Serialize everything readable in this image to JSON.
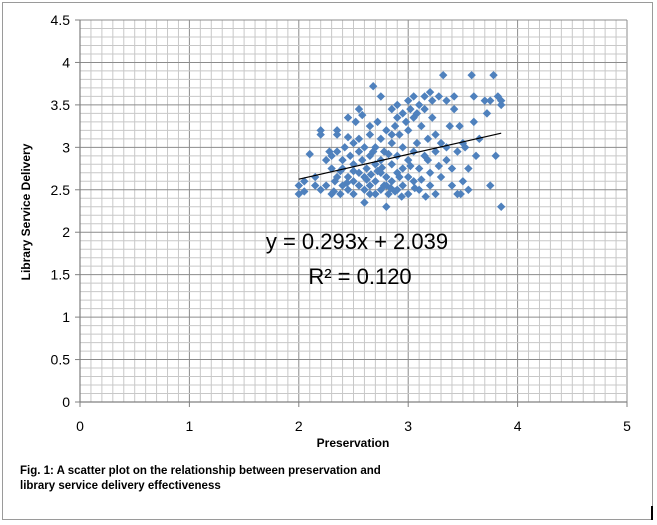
{
  "chart_data": {
    "type": "scatter",
    "xlabel": "Preservation",
    "ylabel": "Library Service Delivery",
    "xlim": [
      0,
      5
    ],
    "ylim": [
      0,
      4.5
    ],
    "x_ticks": [
      "0",
      "1",
      "2",
      "3",
      "4",
      "5"
    ],
    "y_ticks": [
      "0",
      "0.5",
      "1",
      "1.5",
      "2",
      "2.5",
      "3",
      "3.5",
      "4",
      "4.5"
    ],
    "grid": true,
    "marker_color": "#4f81bd",
    "trendline": {
      "equation": "y = 0.293x + 2.039",
      "r_squared": "R² = 0.120",
      "slope": 0.293,
      "intercept": 2.039,
      "x_range": [
        2.0,
        3.85
      ],
      "color": "#000000"
    },
    "points": [
      [
        2.0,
        2.45
      ],
      [
        2.0,
        2.55
      ],
      [
        2.05,
        2.6
      ],
      [
        2.1,
        2.92
      ],
      [
        2.15,
        2.65
      ],
      [
        2.2,
        3.2
      ],
      [
        2.2,
        3.15
      ],
      [
        2.2,
        2.5
      ],
      [
        2.25,
        2.55
      ],
      [
        2.25,
        2.85
      ],
      [
        2.28,
        2.95
      ],
      [
        2.3,
        2.45
      ],
      [
        2.3,
        2.75
      ],
      [
        2.3,
        2.9
      ],
      [
        2.33,
        2.6
      ],
      [
        2.35,
        2.65
      ],
      [
        2.35,
        2.95
      ],
      [
        2.35,
        3.2
      ],
      [
        2.35,
        3.15
      ],
      [
        2.38,
        2.45
      ],
      [
        2.4,
        2.85
      ],
      [
        2.4,
        2.55
      ],
      [
        2.4,
        2.75
      ],
      [
        2.42,
        3.0
      ],
      [
        2.45,
        2.65
      ],
      [
        2.45,
        2.5
      ],
      [
        2.45,
        3.35
      ],
      [
        2.47,
        2.9
      ],
      [
        2.5,
        2.45
      ],
      [
        2.5,
        2.6
      ],
      [
        2.5,
        2.8
      ],
      [
        2.5,
        3.05
      ],
      [
        2.52,
        3.3
      ],
      [
        2.55,
        2.55
      ],
      [
        2.55,
        2.7
      ],
      [
        2.55,
        2.95
      ],
      [
        2.55,
        3.1
      ],
      [
        2.55,
        3.45
      ],
      [
        2.58,
        2.85
      ],
      [
        2.6,
        2.5
      ],
      [
        2.6,
        2.35
      ],
      [
        2.6,
        2.65
      ],
      [
        2.6,
        3.0
      ],
      [
        2.62,
        2.75
      ],
      [
        2.65,
        2.45
      ],
      [
        2.65,
        2.55
      ],
      [
        2.65,
        2.9
      ],
      [
        2.65,
        3.15
      ],
      [
        2.65,
        3.25
      ],
      [
        2.68,
        3.72
      ],
      [
        2.7,
        2.6
      ],
      [
        2.7,
        2.8
      ],
      [
        2.7,
        3.0
      ],
      [
        2.7,
        2.45
      ],
      [
        2.72,
        3.3
      ],
      [
        2.75,
        2.7
      ],
      [
        2.75,
        2.5
      ],
      [
        2.75,
        2.85
      ],
      [
        2.75,
        3.1
      ],
      [
        2.75,
        3.6
      ],
      [
        2.78,
        2.95
      ],
      [
        2.8,
        2.3
      ],
      [
        2.8,
        2.55
      ],
      [
        2.8,
        2.65
      ],
      [
        2.8,
        3.2
      ],
      [
        2.82,
        2.45
      ],
      [
        2.85,
        2.8
      ],
      [
        2.85,
        3.05
      ],
      [
        2.85,
        3.45
      ],
      [
        2.85,
        2.6
      ],
      [
        2.88,
        3.25
      ],
      [
        2.9,
        2.5
      ],
      [
        2.9,
        2.7
      ],
      [
        2.9,
        2.9
      ],
      [
        2.9,
        3.35
      ],
      [
        2.9,
        3.5
      ],
      [
        2.92,
        3.15
      ],
      [
        2.95,
        2.55
      ],
      [
        2.95,
        2.75
      ],
      [
        2.95,
        3.0
      ],
      [
        2.95,
        3.4
      ],
      [
        3.0,
        2.45
      ],
      [
        3.0,
        2.65
      ],
      [
        3.0,
        2.85
      ],
      [
        3.0,
        3.55
      ],
      [
        3.0,
        3.2
      ],
      [
        3.02,
        3.45
      ],
      [
        3.05,
        2.6
      ],
      [
        3.05,
        2.95
      ],
      [
        3.05,
        3.35
      ],
      [
        3.05,
        3.6
      ],
      [
        3.08,
        3.05
      ],
      [
        3.1,
        2.75
      ],
      [
        3.1,
        2.5
      ],
      [
        3.1,
        3.5
      ],
      [
        3.12,
        3.25
      ],
      [
        3.15,
        2.9
      ],
      [
        3.15,
        3.6
      ],
      [
        3.15,
        3.45
      ],
      [
        3.18,
        3.1
      ],
      [
        3.2,
        3.65
      ],
      [
        3.2,
        2.55
      ],
      [
        3.2,
        2.7
      ],
      [
        3.22,
        3.55
      ],
      [
        3.25,
        2.45
      ],
      [
        3.25,
        3.15
      ],
      [
        3.25,
        2.95
      ],
      [
        3.28,
        3.6
      ],
      [
        3.3,
        3.05
      ],
      [
        3.3,
        2.65
      ],
      [
        3.32,
        3.85
      ],
      [
        3.35,
        3.55
      ],
      [
        3.35,
        2.85
      ],
      [
        3.38,
        3.25
      ],
      [
        3.4,
        2.55
      ],
      [
        3.4,
        2.75
      ],
      [
        3.42,
        3.6
      ],
      [
        3.45,
        2.45
      ],
      [
        3.45,
        2.95
      ],
      [
        3.47,
        3.25
      ],
      [
        3.5,
        2.6
      ],
      [
        3.5,
        3.05
      ],
      [
        3.52,
        3.0
      ],
      [
        3.55,
        2.75
      ],
      [
        3.55,
        2.5
      ],
      [
        3.58,
        3.85
      ],
      [
        3.6,
        3.6
      ],
      [
        3.6,
        3.3
      ],
      [
        3.62,
        2.9
      ],
      [
        3.65,
        3.1
      ],
      [
        3.7,
        3.55
      ],
      [
        3.72,
        3.4
      ],
      [
        3.75,
        2.55
      ],
      [
        3.75,
        3.55
      ],
      [
        3.78,
        3.85
      ],
      [
        3.8,
        2.9
      ],
      [
        3.82,
        3.6
      ],
      [
        3.85,
        3.5
      ],
      [
        3.85,
        2.3
      ],
      [
        3.85,
        3.55
      ],
      [
        2.05,
        2.48
      ],
      [
        2.15,
        2.55
      ],
      [
        2.38,
        2.72
      ],
      [
        2.5,
        2.72
      ],
      [
        2.62,
        2.62
      ],
      [
        2.68,
        2.95
      ],
      [
        2.72,
        2.72
      ],
      [
        2.78,
        2.55
      ],
      [
        2.82,
        2.92
      ],
      [
        2.88,
        2.48
      ],
      [
        2.92,
        2.65
      ],
      [
        3.02,
        2.78
      ],
      [
        3.12,
        2.62
      ],
      [
        3.18,
        2.85
      ],
      [
        3.28,
        2.78
      ],
      [
        3.35,
        3.0
      ],
      [
        3.42,
        3.45
      ],
      [
        3.48,
        2.45
      ],
      [
        2.45,
        3.12
      ],
      [
        2.58,
        3.38
      ],
      [
        2.85,
        3.15
      ],
      [
        2.98,
        3.3
      ],
      [
        3.08,
        3.4
      ],
      [
        3.22,
        3.35
      ],
      [
        2.32,
        2.48
      ],
      [
        2.44,
        2.58
      ],
      [
        2.66,
        2.68
      ],
      [
        2.76,
        2.76
      ],
      [
        2.84,
        2.52
      ],
      [
        2.94,
        2.42
      ],
      [
        3.06,
        2.52
      ],
      [
        3.16,
        2.42
      ]
    ]
  },
  "caption": {
    "line1": "Fig. 1: A scatter plot on the relationship between preservation and",
    "line2": "library service delivery effectiveness"
  }
}
